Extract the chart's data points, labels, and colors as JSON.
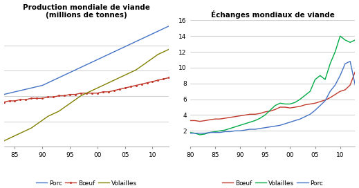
{
  "left_title": "Production mondiale de viande\n(millions de tonnes)",
  "right_title": "Échanges mondiaux de viande",
  "left_years": [
    83,
    84,
    85,
    86,
    87,
    88,
    89,
    90,
    91,
    92,
    93,
    94,
    95,
    96,
    97,
    98,
    99,
    100,
    101,
    102,
    103,
    104,
    105,
    106,
    107,
    108,
    109,
    110,
    111,
    112,
    113
  ],
  "left_porc": [
    56,
    57,
    58,
    59,
    60,
    61,
    62,
    63,
    65,
    67,
    69,
    71,
    73,
    75,
    77,
    79,
    81,
    83,
    85,
    87,
    89,
    91,
    93,
    95,
    97,
    99,
    101,
    103,
    105,
    107,
    109
  ],
  "left_boeuf": [
    50,
    51,
    51,
    52,
    52,
    53,
    53,
    53,
    54,
    54,
    55,
    55,
    56,
    56,
    57,
    57,
    57,
    57,
    58,
    58,
    59,
    60,
    61,
    62,
    63,
    64,
    65,
    66,
    67,
    68,
    69
  ],
  "left_volailles": [
    20,
    22,
    24,
    26,
    28,
    30,
    33,
    36,
    39,
    41,
    43,
    46,
    49,
    52,
    55,
    57,
    59,
    61,
    63,
    65,
    67,
    69,
    71,
    73,
    75,
    78,
    81,
    84,
    87,
    89,
    91
  ],
  "right_years": [
    80,
    81,
    82,
    83,
    84,
    85,
    86,
    87,
    88,
    89,
    90,
    91,
    92,
    93,
    94,
    95,
    96,
    97,
    98,
    99,
    100,
    101,
    102,
    103,
    104,
    105,
    106,
    107,
    108,
    109,
    110,
    111,
    112,
    113
  ],
  "right_boeuf": [
    3.3,
    3.3,
    3.2,
    3.3,
    3.4,
    3.5,
    3.5,
    3.6,
    3.7,
    3.8,
    3.9,
    4.0,
    4.1,
    4.1,
    4.2,
    4.4,
    4.5,
    4.7,
    5.0,
    5.0,
    4.9,
    5.0,
    5.1,
    5.3,
    5.4,
    5.5,
    5.7,
    5.9,
    6.2,
    6.6,
    7.0,
    7.2,
    7.8,
    9.5
  ],
  "right_volailles": [
    1.8,
    1.7,
    1.5,
    1.6,
    1.8,
    1.9,
    2.0,
    2.1,
    2.3,
    2.5,
    2.7,
    2.9,
    3.1,
    3.3,
    3.6,
    4.0,
    4.6,
    5.2,
    5.5,
    5.4,
    5.4,
    5.6,
    6.0,
    6.5,
    7.0,
    8.5,
    9.0,
    8.5,
    10.5,
    12.0,
    14.0,
    13.5,
    13.2,
    13.5
  ],
  "right_porc": [
    1.7,
    1.7,
    1.7,
    1.7,
    1.8,
    1.8,
    1.8,
    1.9,
    1.9,
    2.0,
    2.0,
    2.1,
    2.2,
    2.2,
    2.3,
    2.4,
    2.5,
    2.6,
    2.7,
    2.9,
    3.1,
    3.3,
    3.5,
    3.8,
    4.1,
    4.6,
    5.2,
    5.8,
    7.0,
    7.8,
    9.0,
    10.5,
    10.8,
    7.8
  ],
  "left_xlim": [
    83,
    113
  ],
  "left_xticks": [
    85,
    90,
    95,
    100,
    105,
    110
  ],
  "left_xticklabels": [
    "85",
    "90",
    "95",
    "00",
    "05",
    "10"
  ],
  "right_xlim": [
    80,
    113
  ],
  "right_xticks": [
    80,
    85,
    90,
    95,
    100,
    105,
    110
  ],
  "right_xticklabels": [
    "80",
    "85",
    "90",
    "95",
    "00",
    "05",
    "10"
  ],
  "right_ylim": [
    0,
    16
  ],
  "right_yticks": [
    0,
    2,
    4,
    6,
    8,
    10,
    12,
    14,
    16
  ],
  "color_porc": "#4472C4",
  "color_boeuf": "#C0392B",
  "color_volailles_left": "#808000",
  "color_volailles_right": "#00AA44",
  "bg_color": "#FFFFFF",
  "grid_color": "#BBBBBB",
  "legend_fontsize": 6.5,
  "title_fontsize": 7.5,
  "tick_fontsize": 6.5
}
